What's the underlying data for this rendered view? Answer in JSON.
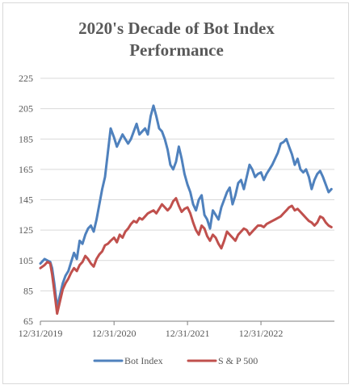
{
  "chart_data": {
    "type": "line",
    "title_lines": [
      "2020's Decade of Bot Index",
      "Performance"
    ],
    "xlabel": "",
    "ylabel": "",
    "ylim": [
      65,
      225
    ],
    "yticks": [
      65,
      85,
      105,
      125,
      145,
      165,
      185,
      205,
      225
    ],
    "xlim": [
      "2019-12-31",
      "2023-12-31"
    ],
    "xticks": [
      "12/31/2019",
      "12/31/2020",
      "12/31/2021",
      "12/31/2022"
    ],
    "grid": true,
    "legend_position": "bottom",
    "series": [
      {
        "name": "Bot Index",
        "color": "#4f81bd",
        "x": [
          "2019-12-31",
          "2020-01-21",
          "2020-02-04",
          "2020-02-18",
          "2020-02-27",
          "2020-03-09",
          "2020-03-23",
          "2020-04-06",
          "2020-04-20",
          "2020-05-04",
          "2020-05-18",
          "2020-06-01",
          "2020-06-15",
          "2020-06-29",
          "2020-07-13",
          "2020-07-27",
          "2020-08-10",
          "2020-08-24",
          "2020-09-07",
          "2020-09-21",
          "2020-10-05",
          "2020-10-19",
          "2020-11-02",
          "2020-11-16",
          "2020-11-30",
          "2020-12-14",
          "2020-12-31",
          "2021-01-14",
          "2021-01-28",
          "2021-02-11",
          "2021-02-25",
          "2021-03-11",
          "2021-03-25",
          "2021-04-08",
          "2021-04-22",
          "2021-05-06",
          "2021-05-20",
          "2021-06-03",
          "2021-06-17",
          "2021-07-01",
          "2021-07-15",
          "2021-07-29",
          "2021-08-12",
          "2021-08-26",
          "2021-09-09",
          "2021-09-23",
          "2021-10-07",
          "2021-10-21",
          "2021-11-04",
          "2021-11-18",
          "2021-12-02",
          "2021-12-16",
          "2021-12-31",
          "2022-01-14",
          "2022-01-28",
          "2022-02-11",
          "2022-02-25",
          "2022-03-11",
          "2022-03-25",
          "2022-04-08",
          "2022-04-22",
          "2022-05-06",
          "2022-05-20",
          "2022-06-03",
          "2022-06-17",
          "2022-07-01",
          "2022-07-15",
          "2022-07-29",
          "2022-08-12",
          "2022-08-26",
          "2022-09-09",
          "2022-09-23",
          "2022-10-07",
          "2022-10-21",
          "2022-11-04",
          "2022-11-18",
          "2022-12-02",
          "2022-12-16",
          "2022-12-31",
          "2023-01-14",
          "2023-01-28",
          "2023-02-11",
          "2023-02-25",
          "2023-03-11",
          "2023-03-25",
          "2023-04-08",
          "2023-04-22",
          "2023-05-06",
          "2023-05-20",
          "2023-06-03",
          "2023-06-17",
          "2023-07-01",
          "2023-07-15",
          "2023-07-29",
          "2023-08-12",
          "2023-08-26",
          "2023-09-09",
          "2023-09-23",
          "2023-10-07",
          "2023-10-21",
          "2023-11-04",
          "2023-11-18",
          "2023-12-02",
          "2023-12-16"
        ],
        "values": [
          103,
          106,
          105,
          104,
          100,
          90,
          74,
          82,
          90,
          95,
          98,
          104,
          110,
          106,
          118,
          116,
          122,
          126,
          128,
          124,
          132,
          142,
          152,
          160,
          176,
          192,
          186,
          180,
          184,
          188,
          185,
          182,
          185,
          190,
          195,
          188,
          190,
          192,
          188,
          200,
          207,
          200,
          192,
          190,
          185,
          178,
          168,
          165,
          170,
          180,
          172,
          162,
          155,
          150,
          142,
          138,
          145,
          148,
          135,
          132,
          126,
          138,
          135,
          132,
          140,
          145,
          150,
          153,
          142,
          148,
          156,
          158,
          152,
          160,
          168,
          165,
          160,
          162,
          163,
          158,
          162,
          165,
          168,
          172,
          176,
          182,
          183,
          185,
          180,
          175,
          168,
          172,
          165,
          163,
          165,
          160,
          152,
          158,
          162,
          164,
          160,
          155,
          150,
          152
        ]
      },
      {
        "name": "S & P 500",
        "color": "#c0504d",
        "x": [
          "2019-12-31",
          "2020-01-21",
          "2020-02-04",
          "2020-02-18",
          "2020-02-27",
          "2020-03-09",
          "2020-03-23",
          "2020-04-06",
          "2020-04-20",
          "2020-05-04",
          "2020-05-18",
          "2020-06-01",
          "2020-06-15",
          "2020-06-29",
          "2020-07-13",
          "2020-07-27",
          "2020-08-10",
          "2020-08-24",
          "2020-09-07",
          "2020-09-21",
          "2020-10-05",
          "2020-10-19",
          "2020-11-02",
          "2020-11-16",
          "2020-11-30",
          "2020-12-14",
          "2020-12-31",
          "2021-01-14",
          "2021-01-28",
          "2021-02-11",
          "2021-02-25",
          "2021-03-11",
          "2021-03-25",
          "2021-04-08",
          "2021-04-22",
          "2021-05-06",
          "2021-05-20",
          "2021-06-03",
          "2021-06-17",
          "2021-07-01",
          "2021-07-15",
          "2021-07-29",
          "2021-08-12",
          "2021-08-26",
          "2021-09-09",
          "2021-09-23",
          "2021-10-07",
          "2021-10-21",
          "2021-11-04",
          "2021-11-18",
          "2021-12-02",
          "2021-12-16",
          "2021-12-31",
          "2022-01-14",
          "2022-01-28",
          "2022-02-11",
          "2022-02-25",
          "2022-03-11",
          "2022-03-25",
          "2022-04-08",
          "2022-04-22",
          "2022-05-06",
          "2022-05-20",
          "2022-06-03",
          "2022-06-17",
          "2022-07-01",
          "2022-07-15",
          "2022-07-29",
          "2022-08-12",
          "2022-08-26",
          "2022-09-09",
          "2022-09-23",
          "2022-10-07",
          "2022-10-21",
          "2022-11-04",
          "2022-11-18",
          "2022-12-02",
          "2022-12-16",
          "2022-12-31",
          "2023-01-14",
          "2023-01-28",
          "2023-02-11",
          "2023-02-25",
          "2023-03-11",
          "2023-03-25",
          "2023-04-08",
          "2023-04-22",
          "2023-05-06",
          "2023-05-20",
          "2023-06-03",
          "2023-06-17",
          "2023-07-01",
          "2023-07-15",
          "2023-07-29",
          "2023-08-12",
          "2023-08-26",
          "2023-09-09",
          "2023-09-23",
          "2023-10-07",
          "2023-10-21",
          "2023-11-04",
          "2023-11-18",
          "2023-12-02",
          "2023-12-16"
        ],
        "values": [
          100,
          102,
          104,
          103,
          96,
          85,
          70,
          78,
          86,
          90,
          93,
          97,
          100,
          98,
          102,
          104,
          108,
          106,
          103,
          101,
          106,
          109,
          111,
          115,
          116,
          118,
          120,
          117,
          122,
          120,
          124,
          126,
          129,
          131,
          130,
          133,
          132,
          134,
          136,
          137,
          138,
          136,
          139,
          142,
          140,
          138,
          140,
          144,
          146,
          141,
          137,
          139,
          140,
          136,
          130,
          125,
          122,
          128,
          126,
          121,
          118,
          122,
          120,
          116,
          113,
          118,
          124,
          122,
          120,
          118,
          122,
          124,
          126,
          125,
          122,
          124,
          126,
          128,
          128,
          127,
          129,
          130,
          131,
          132,
          133,
          134,
          136,
          138,
          140,
          141,
          138,
          139,
          137,
          135,
          133,
          131,
          130,
          128,
          130,
          134,
          133,
          130,
          128,
          127
        ]
      }
    ]
  }
}
